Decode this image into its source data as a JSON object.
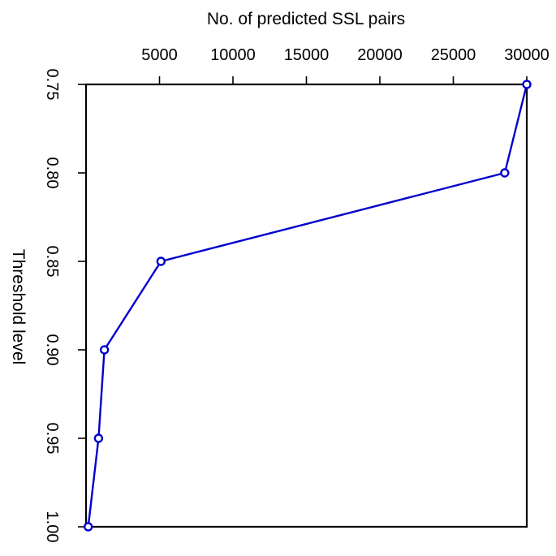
{
  "chart_data": {
    "type": "line",
    "xlabel": "No. of predicted SSL pairs",
    "ylabel": "Threshold level",
    "x_axis_position": "top",
    "x_ticks": [
      5000,
      10000,
      15000,
      20000,
      25000,
      30000
    ],
    "x_tick_labels": [
      "5000",
      "10000",
      "15000",
      "20000",
      "25000",
      "30000"
    ],
    "y_ticks": [
      0.75,
      0.8,
      0.85,
      0.9,
      0.95,
      1.0
    ],
    "y_tick_labels": [
      "0.75",
      "0.80",
      "0.85",
      "0.90",
      "0.95",
      "1.00"
    ],
    "y_tick_label_rotation": "rotated 90 degrees clockwise",
    "xlim": [
      0,
      30000
    ],
    "ylim": [
      1.0,
      0.75
    ],
    "y_reversed": true,
    "grid": false,
    "series": [
      {
        "color": "#0000cc",
        "marker": "open-circle",
        "points": [
          {
            "x": 30000,
            "y": 0.75
          },
          {
            "x": 28500,
            "y": 0.8
          },
          {
            "x": 5100,
            "y": 0.85
          },
          {
            "x": 1250,
            "y": 0.9
          },
          {
            "x": 850,
            "y": 0.95
          },
          {
            "x": 150,
            "y": 1.0
          }
        ]
      }
    ]
  }
}
